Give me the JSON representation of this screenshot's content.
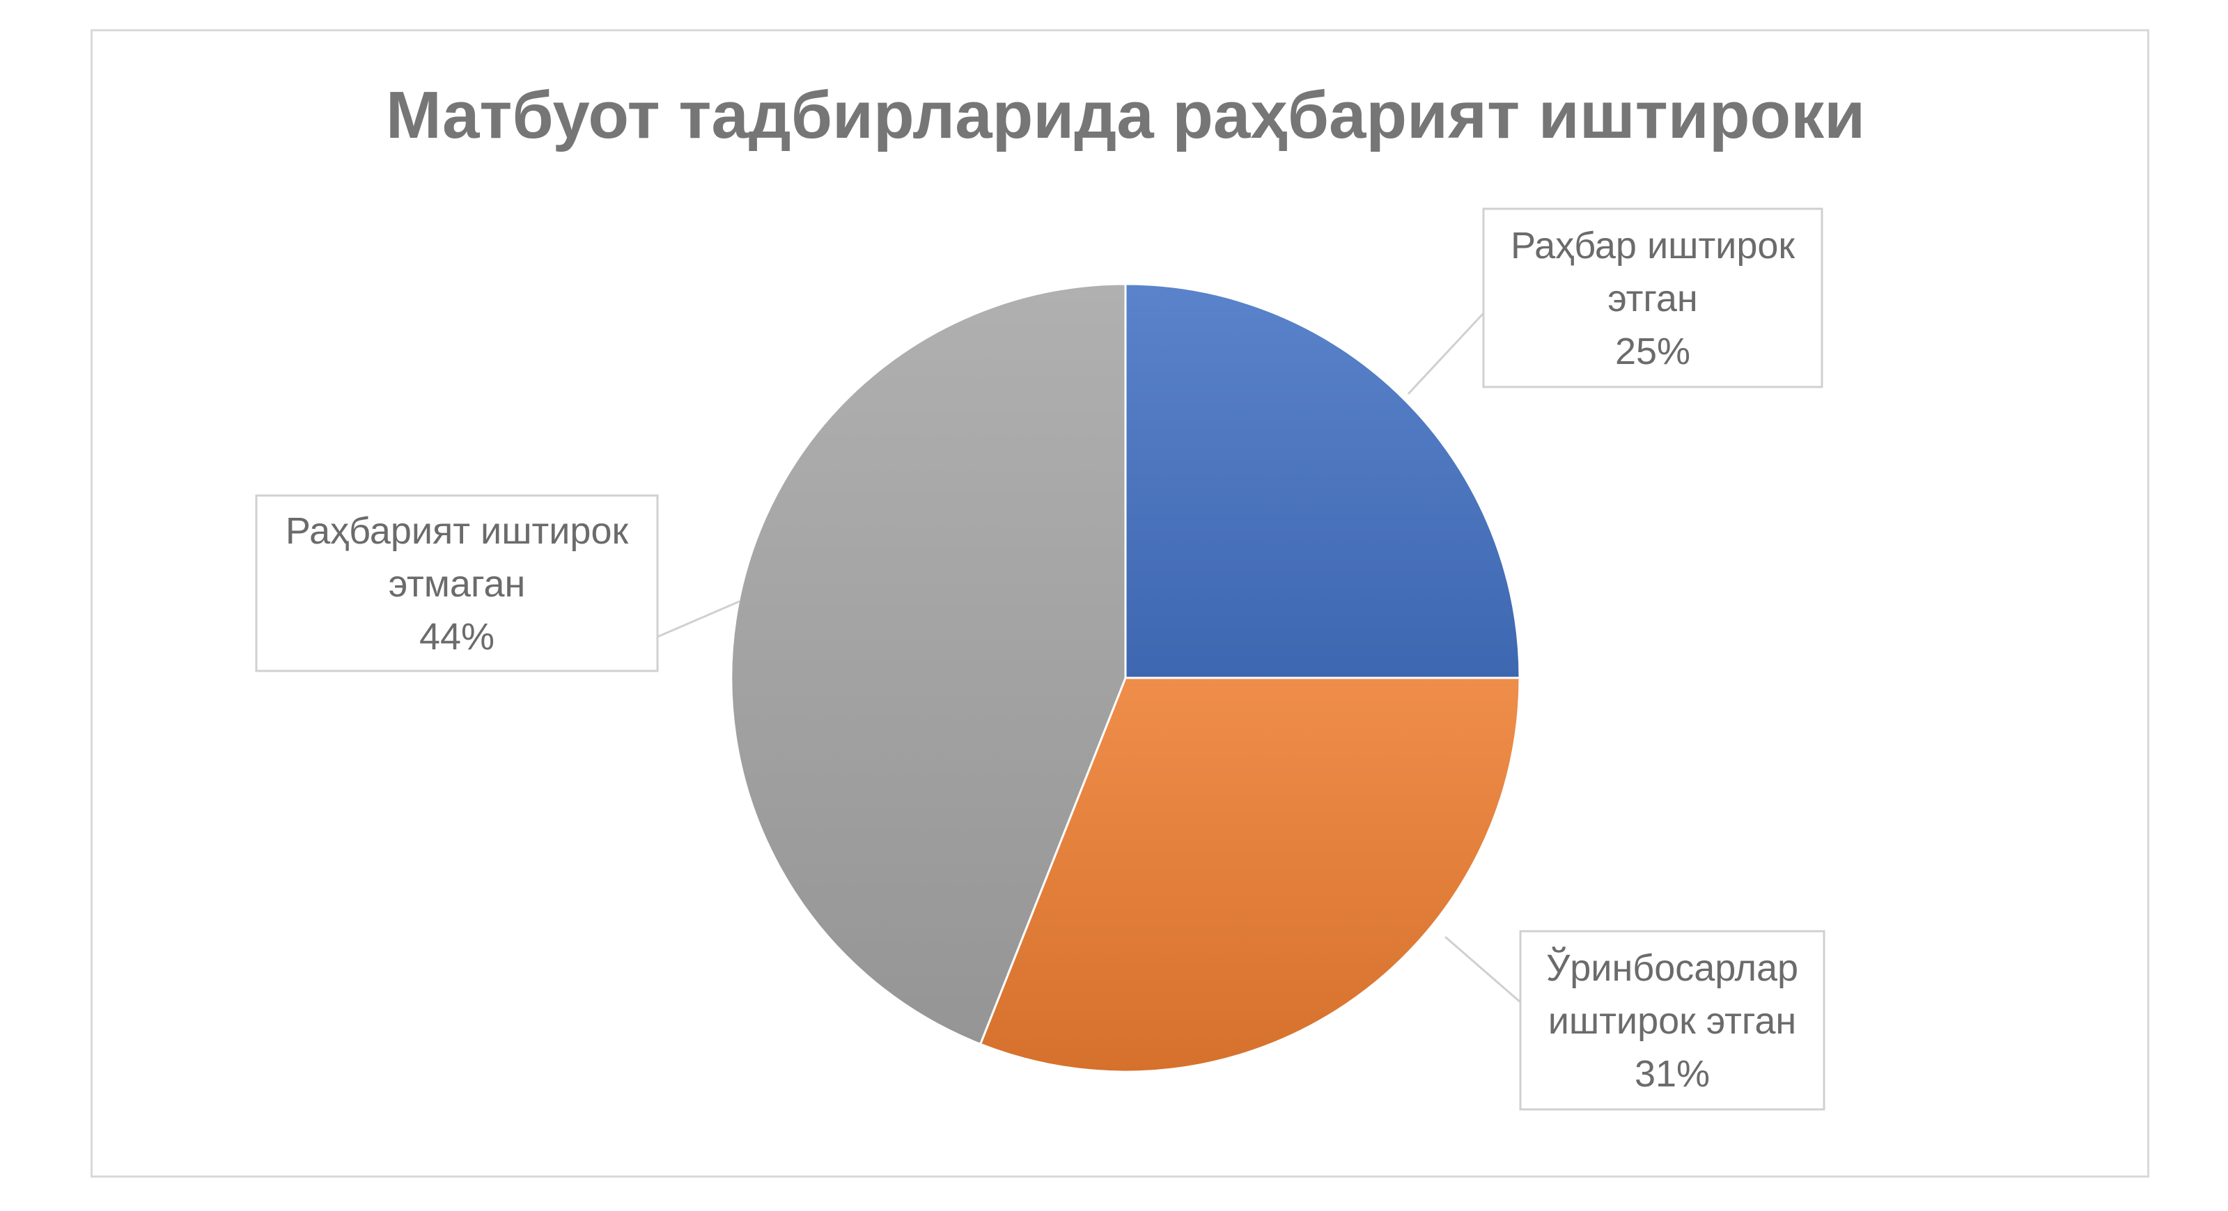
{
  "chart_data": {
    "type": "pie",
    "title": "Матбуот тадбирларида раҳбарият иштироки",
    "start_angle_deg": 0,
    "direction": "clockwise",
    "legend": "none",
    "slices": [
      {
        "label_lines": [
          "Раҳбар иштирок",
          "этган"
        ],
        "value": 25,
        "value_text": "25%",
        "color": "#4472C4"
      },
      {
        "label_lines": [
          "Ўринбосарлар",
          "иштирок этган"
        ],
        "value": 31,
        "value_text": "31%",
        "color": "#ED7D31"
      },
      {
        "label_lines": [
          "Раҳбарият иштирок",
          "этмаган"
        ],
        "value": 44,
        "value_text": "44%",
        "color": "#A5A5A5"
      }
    ]
  }
}
